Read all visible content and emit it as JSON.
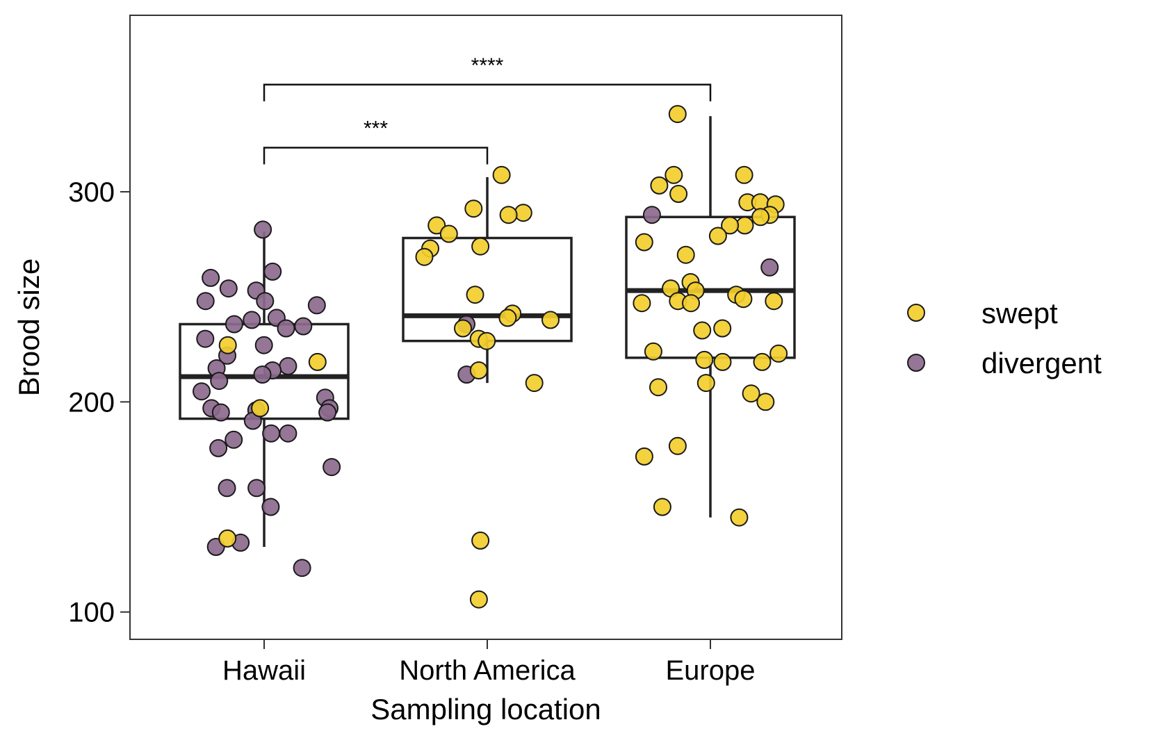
{
  "chart_data": {
    "type": "box",
    "title": "",
    "xlabel": "Sampling location",
    "ylabel": "Brood size",
    "categories": [
      "Hawaii",
      "North America",
      "Europe"
    ],
    "ylim": [
      87,
      384
    ],
    "yticks": [
      100,
      200,
      300
    ],
    "grid": false,
    "legend": {
      "position": "right",
      "entries": [
        {
          "label": "swept",
          "color": "#F2CE2E"
        },
        {
          "label": "divergent",
          "color": "#8C6A8D"
        }
      ]
    },
    "boxes": [
      {
        "category": "Hawaii",
        "whisker_low": 131,
        "q1": 192,
        "median": 212,
        "q3": 237,
        "whisker_high": 281
      },
      {
        "category": "North America",
        "whisker_low": 209,
        "q1": 229,
        "median": 241,
        "q3": 278,
        "whisker_high": 307
      },
      {
        "category": "Europe",
        "whisker_low": 145,
        "q1": 221,
        "median": 253,
        "q3": 288,
        "whisker_high": 336
      }
    ],
    "significance": [
      {
        "from": "Hawaii",
        "to": "North America",
        "y": 321,
        "label": "***"
      },
      {
        "from": "Hawaii",
        "to": "Europe",
        "y": 351,
        "label": "****"
      }
    ],
    "series": [
      {
        "name": "divergent",
        "color": "#8C6A8D",
        "points": [
          {
            "category": "Hawaii",
            "y": 282
          },
          {
            "category": "Hawaii",
            "y": 262
          },
          {
            "category": "Hawaii",
            "y": 259
          },
          {
            "category": "Hawaii",
            "y": 254
          },
          {
            "category": "Hawaii",
            "y": 253
          },
          {
            "category": "Hawaii",
            "y": 248
          },
          {
            "category": "Hawaii",
            "y": 248
          },
          {
            "category": "Hawaii",
            "y": 246
          },
          {
            "category": "Hawaii",
            "y": 240
          },
          {
            "category": "Hawaii",
            "y": 239
          },
          {
            "category": "Hawaii",
            "y": 237
          },
          {
            "category": "Hawaii",
            "y": 236
          },
          {
            "category": "Hawaii",
            "y": 235
          },
          {
            "category": "Hawaii",
            "y": 230
          },
          {
            "category": "Hawaii",
            "y": 227
          },
          {
            "category": "Hawaii",
            "y": 222
          },
          {
            "category": "Hawaii",
            "y": 217
          },
          {
            "category": "Hawaii",
            "y": 216
          },
          {
            "category": "Hawaii",
            "y": 215
          },
          {
            "category": "Hawaii",
            "y": 213
          },
          {
            "category": "Hawaii",
            "y": 210
          },
          {
            "category": "Hawaii",
            "y": 205
          },
          {
            "category": "Hawaii",
            "y": 202
          },
          {
            "category": "Hawaii",
            "y": 197
          },
          {
            "category": "Hawaii",
            "y": 197
          },
          {
            "category": "Hawaii",
            "y": 196
          },
          {
            "category": "Hawaii",
            "y": 195
          },
          {
            "category": "Hawaii",
            "y": 195
          },
          {
            "category": "Hawaii",
            "y": 191
          },
          {
            "category": "Hawaii",
            "y": 185
          },
          {
            "category": "Hawaii",
            "y": 185
          },
          {
            "category": "Hawaii",
            "y": 182
          },
          {
            "category": "Hawaii",
            "y": 178
          },
          {
            "category": "Hawaii",
            "y": 169
          },
          {
            "category": "Hawaii",
            "y": 159
          },
          {
            "category": "Hawaii",
            "y": 159
          },
          {
            "category": "Hawaii",
            "y": 150
          },
          {
            "category": "Hawaii",
            "y": 133
          },
          {
            "category": "Hawaii",
            "y": 131
          },
          {
            "category": "Hawaii",
            "y": 121
          },
          {
            "category": "North America",
            "y": 213
          },
          {
            "category": "North America",
            "y": 237
          },
          {
            "category": "Europe",
            "y": 289
          },
          {
            "category": "Europe",
            "y": 264
          }
        ]
      },
      {
        "name": "swept",
        "color": "#F2CE2E",
        "points": [
          {
            "category": "Hawaii",
            "y": 227
          },
          {
            "category": "Hawaii",
            "y": 219
          },
          {
            "category": "Hawaii",
            "y": 197
          },
          {
            "category": "Hawaii",
            "y": 135
          },
          {
            "category": "North America",
            "y": 308
          },
          {
            "category": "North America",
            "y": 292
          },
          {
            "category": "North America",
            "y": 290
          },
          {
            "category": "North America",
            "y": 289
          },
          {
            "category": "North America",
            "y": 284
          },
          {
            "category": "North America",
            "y": 280
          },
          {
            "category": "North America",
            "y": 274
          },
          {
            "category": "North America",
            "y": 273
          },
          {
            "category": "North America",
            "y": 269
          },
          {
            "category": "North America",
            "y": 251
          },
          {
            "category": "North America",
            "y": 242
          },
          {
            "category": "North America",
            "y": 240
          },
          {
            "category": "North America",
            "y": 239
          },
          {
            "category": "North America",
            "y": 235
          },
          {
            "category": "North America",
            "y": 230
          },
          {
            "category": "North America",
            "y": 229
          },
          {
            "category": "North America",
            "y": 215
          },
          {
            "category": "North America",
            "y": 209
          },
          {
            "category": "North America",
            "y": 134
          },
          {
            "category": "North America",
            "y": 106
          },
          {
            "category": "Europe",
            "y": 337
          },
          {
            "category": "Europe",
            "y": 308
          },
          {
            "category": "Europe",
            "y": 308
          },
          {
            "category": "Europe",
            "y": 303
          },
          {
            "category": "Europe",
            "y": 299
          },
          {
            "category": "Europe",
            "y": 295
          },
          {
            "category": "Europe",
            "y": 295
          },
          {
            "category": "Europe",
            "y": 294
          },
          {
            "category": "Europe",
            "y": 289
          },
          {
            "category": "Europe",
            "y": 288
          },
          {
            "category": "Europe",
            "y": 284
          },
          {
            "category": "Europe",
            "y": 284
          },
          {
            "category": "Europe",
            "y": 279
          },
          {
            "category": "Europe",
            "y": 276
          },
          {
            "category": "Europe",
            "y": 270
          },
          {
            "category": "Europe",
            "y": 257
          },
          {
            "category": "Europe",
            "y": 254
          },
          {
            "category": "Europe",
            "y": 253
          },
          {
            "category": "Europe",
            "y": 251
          },
          {
            "category": "Europe",
            "y": 249
          },
          {
            "category": "Europe",
            "y": 248
          },
          {
            "category": "Europe",
            "y": 248
          },
          {
            "category": "Europe",
            "y": 247
          },
          {
            "category": "Europe",
            "y": 247
          },
          {
            "category": "Europe",
            "y": 235
          },
          {
            "category": "Europe",
            "y": 234
          },
          {
            "category": "Europe",
            "y": 224
          },
          {
            "category": "Europe",
            "y": 223
          },
          {
            "category": "Europe",
            "y": 220
          },
          {
            "category": "Europe",
            "y": 219
          },
          {
            "category": "Europe",
            "y": 219
          },
          {
            "category": "Europe",
            "y": 209
          },
          {
            "category": "Europe",
            "y": 207
          },
          {
            "category": "Europe",
            "y": 204
          },
          {
            "category": "Europe",
            "y": 200
          },
          {
            "category": "Europe",
            "y": 179
          },
          {
            "category": "Europe",
            "y": 174
          },
          {
            "category": "Europe",
            "y": 150
          },
          {
            "category": "Europe",
            "y": 145
          }
        ]
      }
    ]
  }
}
